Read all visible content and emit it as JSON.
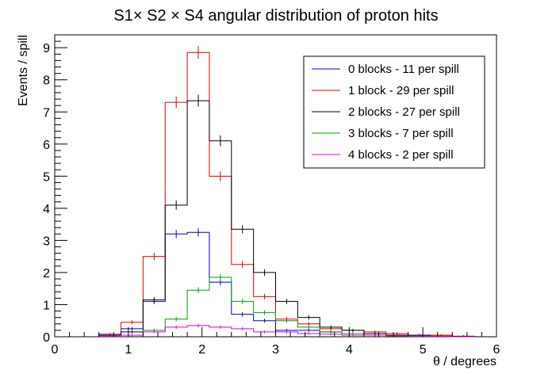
{
  "chart_data": {
    "type": "line",
    "title": "S1× S2 × S4 angular distribution of proton hits",
    "xlabel": "θ / degrees",
    "ylabel": "Events / spill",
    "xlim": [
      0,
      6
    ],
    "ylim": [
      0,
      9.4
    ],
    "x_ticks": [
      "0",
      "1",
      "2",
      "3",
      "4",
      "5",
      "6"
    ],
    "y_ticks": [
      "0",
      "1",
      "2",
      "3",
      "4",
      "5",
      "6",
      "7",
      "8",
      "9"
    ],
    "bin_edges": [
      0.6,
      0.9,
      1.2,
      1.5,
      1.8,
      2.1,
      2.4,
      2.7,
      3.0,
      3.3,
      3.6,
      3.9,
      4.2,
      4.5,
      4.8,
      5.1,
      5.4,
      5.7
    ],
    "legend_position": "top-right",
    "series": [
      {
        "name": "0 blocks - 11 per spill",
        "color": "#0000cc",
        "values": [
          0.05,
          0.25,
          1.1,
          3.2,
          3.25,
          1.7,
          0.7,
          0.5,
          0.2,
          0.2,
          0.15,
          0.1,
          0.05,
          0.03,
          0.02,
          0.01,
          0.01
        ]
      },
      {
        "name": "1 block - 29 per spill",
        "color": "#e00000",
        "values": [
          0.08,
          0.45,
          2.5,
          7.3,
          8.85,
          5.0,
          2.25,
          1.25,
          0.55,
          0.4,
          0.25,
          0.2,
          0.15,
          0.1,
          0.05,
          0.05,
          0.02
        ]
      },
      {
        "name": "2 blocks - 27 per spill",
        "color": "#000000",
        "values": [
          0.02,
          0.15,
          1.15,
          4.1,
          7.35,
          6.1,
          3.35,
          2.0,
          1.1,
          0.6,
          0.3,
          0.2,
          0.1,
          0.05,
          0.05,
          0.02,
          0.01
        ]
      },
      {
        "name": "3 blocks - 7 per spill",
        "color": "#00a000",
        "values": [
          0.01,
          0.05,
          0.2,
          0.55,
          1.45,
          1.85,
          1.1,
          0.75,
          0.5,
          0.3,
          0.15,
          0.1,
          0.05,
          0.02,
          0.01,
          0.01,
          0.0
        ]
      },
      {
        "name": "4 blocks - 2 per spill",
        "color": "#e000e0",
        "values": [
          0.01,
          0.05,
          0.15,
          0.3,
          0.35,
          0.3,
          0.25,
          0.15,
          0.15,
          0.1,
          0.08,
          0.05,
          0.05,
          0.03,
          0.02,
          0.01,
          0.0
        ]
      }
    ]
  }
}
